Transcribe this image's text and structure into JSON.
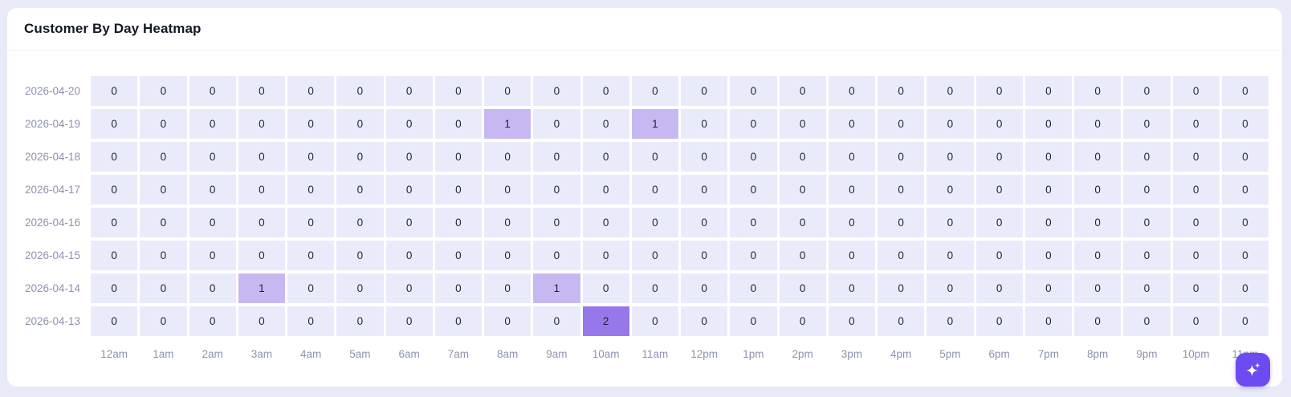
{
  "card": {
    "title": "Customer By Day Heatmap"
  },
  "chart_data": {
    "type": "heatmap",
    "title": "Customer By Day Heatmap",
    "rows": [
      "2026-04-20",
      "2026-04-19",
      "2026-04-18",
      "2026-04-17",
      "2026-04-16",
      "2026-04-15",
      "2026-04-14",
      "2026-04-13"
    ],
    "columns": [
      "12am",
      "1am",
      "2am",
      "3am",
      "4am",
      "5am",
      "6am",
      "7am",
      "8am",
      "9am",
      "10am",
      "11am",
      "12pm",
      "1pm",
      "2pm",
      "3pm",
      "4pm",
      "5pm",
      "6pm",
      "7pm",
      "8pm",
      "9pm",
      "10pm",
      "11pm"
    ],
    "values": [
      [
        0,
        0,
        0,
        0,
        0,
        0,
        0,
        0,
        0,
        0,
        0,
        0,
        0,
        0,
        0,
        0,
        0,
        0,
        0,
        0,
        0,
        0,
        0,
        0
      ],
      [
        0,
        0,
        0,
        0,
        0,
        0,
        0,
        0,
        1,
        0,
        0,
        1,
        0,
        0,
        0,
        0,
        0,
        0,
        0,
        0,
        0,
        0,
        0,
        0
      ],
      [
        0,
        0,
        0,
        0,
        0,
        0,
        0,
        0,
        0,
        0,
        0,
        0,
        0,
        0,
        0,
        0,
        0,
        0,
        0,
        0,
        0,
        0,
        0,
        0
      ],
      [
        0,
        0,
        0,
        0,
        0,
        0,
        0,
        0,
        0,
        0,
        0,
        0,
        0,
        0,
        0,
        0,
        0,
        0,
        0,
        0,
        0,
        0,
        0,
        0
      ],
      [
        0,
        0,
        0,
        0,
        0,
        0,
        0,
        0,
        0,
        0,
        0,
        0,
        0,
        0,
        0,
        0,
        0,
        0,
        0,
        0,
        0,
        0,
        0,
        0
      ],
      [
        0,
        0,
        0,
        0,
        0,
        0,
        0,
        0,
        0,
        0,
        0,
        0,
        0,
        0,
        0,
        0,
        0,
        0,
        0,
        0,
        0,
        0,
        0,
        0
      ],
      [
        0,
        0,
        0,
        1,
        0,
        0,
        0,
        0,
        0,
        1,
        0,
        0,
        0,
        0,
        0,
        0,
        0,
        0,
        0,
        0,
        0,
        0,
        0,
        0
      ],
      [
        0,
        0,
        0,
        0,
        0,
        0,
        0,
        0,
        0,
        0,
        2,
        0,
        0,
        0,
        0,
        0,
        0,
        0,
        0,
        0,
        0,
        0,
        0,
        0
      ]
    ],
    "value_range": [
      0,
      2
    ],
    "color_scale": {
      "0": "#e9ebfa",
      "1": "#c7b8f2",
      "2": "#9678ea"
    },
    "legend": "none",
    "grid": "off"
  },
  "assistant_button": {
    "icon": "sparkles-icon",
    "color": "#6c4cf2"
  },
  "theme": {
    "page_bg": "#e8eaf8",
    "card_bg": "#ffffff",
    "divider": "#edeef6",
    "title_color": "#121826",
    "axis_label_color": "#8d92b0",
    "cell_text_color": "#1f2430"
  }
}
